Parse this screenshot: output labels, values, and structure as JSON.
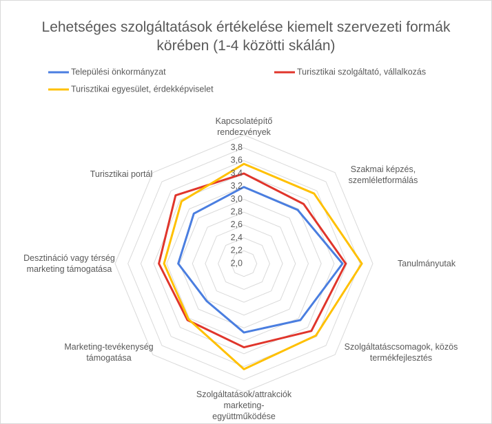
{
  "chart_data": {
    "type": "radar",
    "title": "Lehetséges szolgáltatások értékelése kiemelt szervezeti formák körében (1-4 közötti skálán)",
    "categories": [
      "Kapcsolatépítő rendezvények",
      "Szakmai képzés, szemléletformálás",
      "Tanulmányutak",
      "Szolgáltatáscsomagok, közös termékfejlesztés",
      "Szolgáltatások/attrakciók marketing-együttműködése",
      "Marketing-tevékenység támogatása",
      "Desztináció vagy térség marketing támogatása",
      "Turisztikai portál"
    ],
    "series": [
      {
        "name": "Települési önkormányzat",
        "color": "#4a7ee0",
        "values": [
          3.19,
          3.18,
          3.53,
          3.24,
          3.07,
          2.82,
          3.02,
          3.1
        ]
      },
      {
        "name": "Turisztikai szolgáltató, vállalkozás",
        "color": "#e0352b",
        "values": [
          3.4,
          3.31,
          3.58,
          3.48,
          3.3,
          3.24,
          3.32,
          3.5
        ]
      },
      {
        "name": "Turisztikai egyesület, érdekképviselet",
        "color": "#ffc000",
        "values": [
          3.55,
          3.54,
          3.83,
          3.58,
          3.64,
          3.22,
          3.24,
          3.37
        ]
      }
    ],
    "ylim": [
      2.0,
      4.0
    ],
    "yticks": [
      {
        "value": 2.0,
        "label": "2,0"
      },
      {
        "value": 2.2,
        "label": "2,2"
      },
      {
        "value": 2.4,
        "label": "2,4"
      },
      {
        "value": 2.6,
        "label": "2,6"
      },
      {
        "value": 2.8,
        "label": "2,8"
      },
      {
        "value": 3.0,
        "label": "3,0"
      },
      {
        "value": 3.2,
        "label": "3,2"
      },
      {
        "value": 3.4,
        "label": "3,4"
      },
      {
        "value": 3.6,
        "label": "3,6"
      },
      {
        "value": 3.8,
        "label": "3,8"
      }
    ],
    "grid": true
  }
}
